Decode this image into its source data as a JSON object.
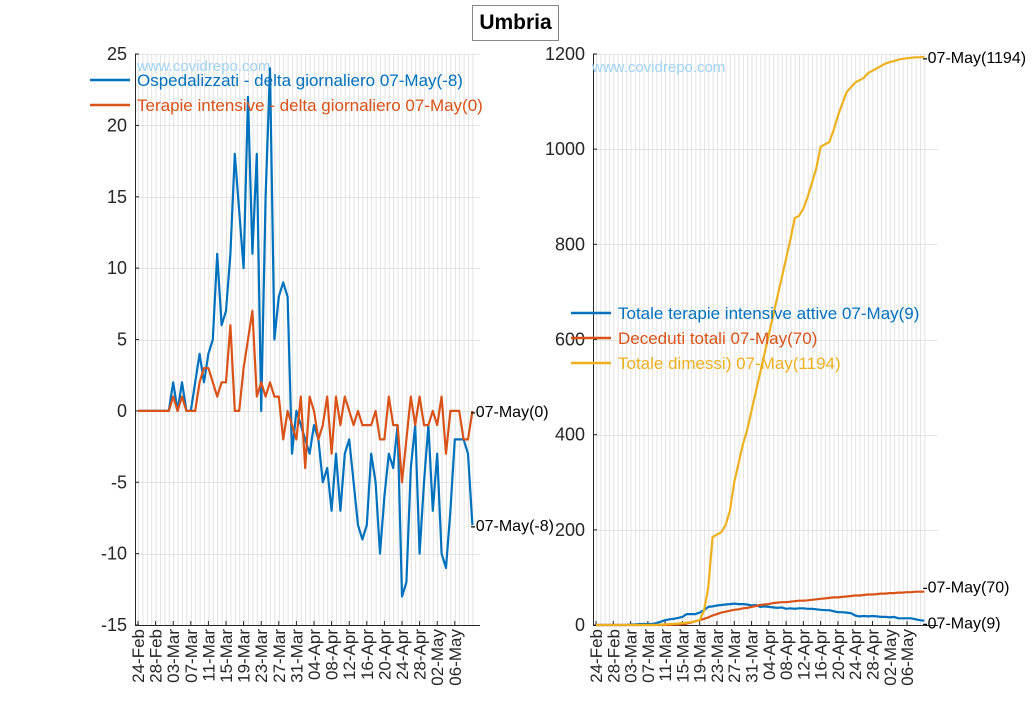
{
  "title": "Umbria",
  "watermark": "www.covidrepo.com",
  "colors": {
    "blue": "#0072BD",
    "orange": "#D95319",
    "yellow": "#EDB120",
    "grid": "#e3e3e3"
  },
  "chart_data": [
    {
      "type": "line",
      "grid": true,
      "legend_position": "top-left",
      "ylim": [
        -15,
        25
      ],
      "yticks": [
        -15,
        -10,
        -5,
        0,
        5,
        10,
        15,
        20,
        25
      ],
      "x_start": "24-Feb",
      "x_end": "07-May",
      "xtick_labels": [
        "24-Feb",
        "28-Feb",
        "03-Mar",
        "07-Mar",
        "11-Mar",
        "15-Mar",
        "19-Mar",
        "23-Mar",
        "27-Mar",
        "31-Mar",
        "04-Apr",
        "08-Apr",
        "12-Apr",
        "16-Apr",
        "20-Apr",
        "24-Apr",
        "28-Apr",
        "02-May",
        "06-May"
      ],
      "series": [
        {
          "name": "Ospedalizzati - delta giornaliero 07-May(-8)",
          "end_label": "-07-May(-8)",
          "color": "blue",
          "values": [
            0,
            0,
            0,
            0,
            0,
            0,
            0,
            0,
            2,
            0,
            2,
            0,
            0,
            2,
            4,
            2,
            4,
            5,
            11,
            6,
            7,
            11,
            18,
            14,
            10,
            22,
            11,
            18,
            0,
            15,
            24,
            5,
            8,
            9,
            8,
            -3,
            0,
            -1,
            -2,
            -3,
            -1,
            -2,
            -5,
            -4,
            -7,
            -3,
            -7,
            -3,
            -2,
            -5,
            -8,
            -9,
            -8,
            -3,
            -5,
            -10,
            -6,
            -3,
            -4,
            -1,
            -13,
            -12,
            -4,
            -1,
            -10,
            -5,
            -1,
            -7,
            -3,
            -10,
            -11,
            -7,
            -2,
            -2,
            -2,
            -3,
            -8
          ]
        },
        {
          "name": "Terapie intensive - delta giornaliero 07-May(0)",
          "end_label": "-07-May(0)",
          "color": "orange",
          "values": [
            0,
            0,
            0,
            0,
            0,
            0,
            0,
            0,
            1,
            0,
            1,
            0,
            0,
            0,
            2,
            3,
            3,
            2,
            1,
            2,
            2,
            6,
            0,
            0,
            3,
            5,
            7,
            1,
            2,
            1,
            2,
            1,
            1,
            -2,
            0,
            -1,
            -2,
            1,
            -4,
            1,
            0,
            -2,
            -1,
            1,
            -3,
            1,
            -1,
            1,
            0,
            -1,
            0,
            -1,
            -1,
            -1,
            0,
            -2,
            -2,
            1,
            -1,
            -1,
            -5,
            -2,
            1,
            -1,
            1,
            -1,
            -1,
            0,
            -1,
            1,
            -3,
            0,
            0,
            0,
            -2,
            -2,
            0
          ]
        }
      ]
    },
    {
      "type": "line",
      "grid": true,
      "legend_position": "center-left",
      "ylim": [
        0,
        1200
      ],
      "yticks": [
        0,
        200,
        400,
        600,
        800,
        1000,
        1200
      ],
      "x_start": "24-Feb",
      "x_end": "07-May",
      "xtick_labels": [
        "24-Feb",
        "28-Feb",
        "03-Mar",
        "07-Mar",
        "11-Mar",
        "15-Mar",
        "19-Mar",
        "23-Mar",
        "27-Mar",
        "31-Mar",
        "04-Apr",
        "08-Apr",
        "12-Apr",
        "16-Apr",
        "20-Apr",
        "24-Apr",
        "28-Apr",
        "02-May",
        "06-May"
      ],
      "series": [
        {
          "name": "Totale terapie intensive attive 07-May(9)",
          "end_label": "-07-May(9)",
          "color": "blue",
          "values": [
            0,
            0,
            0,
            0,
            0,
            0,
            0,
            0,
            1,
            1,
            2,
            2,
            2,
            2,
            4,
            7,
            10,
            12,
            13,
            15,
            17,
            23,
            23,
            23,
            26,
            31,
            38,
            39,
            41,
            42,
            43,
            44,
            45,
            44,
            44,
            43,
            41,
            42,
            38,
            39,
            38,
            37,
            36,
            37,
            34,
            35,
            34,
            35,
            35,
            34,
            34,
            33,
            32,
            31,
            31,
            29,
            27,
            27,
            26,
            25,
            20,
            18,
            19,
            18,
            19,
            18,
            17,
            17,
            16,
            17,
            14,
            14,
            14,
            14,
            12,
            10,
            9
          ]
        },
        {
          "name": "Deceduti totali 07-May(70)",
          "end_label": "-07-May(70)",
          "color": "orange",
          "values": [
            0,
            0,
            0,
            0,
            0,
            0,
            0,
            0,
            0,
            0,
            0,
            0,
            0,
            0,
            0,
            0,
            0,
            0,
            1,
            1,
            2,
            3,
            5,
            8,
            10,
            13,
            16,
            20,
            23,
            26,
            28,
            30,
            32,
            33,
            35,
            36,
            38,
            40,
            42,
            43,
            44,
            46,
            47,
            48,
            48,
            49,
            50,
            51,
            51,
            52,
            53,
            54,
            55,
            56,
            57,
            58,
            58,
            59,
            60,
            61,
            62,
            62,
            63,
            64,
            64,
            65,
            66,
            66,
            67,
            67,
            68,
            68,
            69,
            69,
            70,
            70,
            70
          ]
        },
        {
          "name": "Totale dimessi) 07-May(1194)",
          "end_label": "-07-May(1194)",
          "color": "yellow",
          "values": [
            0,
            0,
            0,
            0,
            0,
            0,
            0,
            0,
            0,
            0,
            0,
            0,
            0,
            0,
            0,
            1,
            1,
            2,
            2,
            3,
            4,
            5,
            6,
            8,
            10,
            30,
            80,
            185,
            190,
            195,
            210,
            240,
            300,
            340,
            380,
            410,
            450,
            490,
            530,
            570,
            610,
            650,
            690,
            730,
            770,
            810,
            855,
            860,
            875,
            900,
            930,
            960,
            1005,
            1010,
            1015,
            1040,
            1070,
            1095,
            1120,
            1130,
            1140,
            1145,
            1150,
            1160,
            1165,
            1170,
            1175,
            1180,
            1183,
            1185,
            1188,
            1190,
            1191,
            1192,
            1193,
            1193,
            1194
          ]
        }
      ]
    }
  ]
}
